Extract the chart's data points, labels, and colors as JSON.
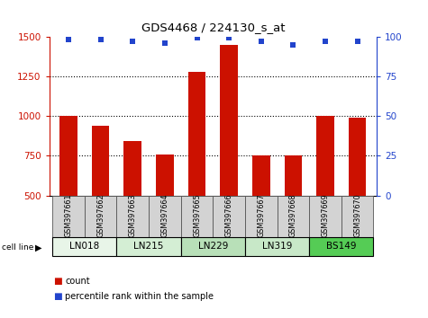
{
  "title": "GDS4468 / 224130_s_at",
  "samples": [
    "GSM397661",
    "GSM397662",
    "GSM397663",
    "GSM397664",
    "GSM397665",
    "GSM397666",
    "GSM397667",
    "GSM397668",
    "GSM397669",
    "GSM397670"
  ],
  "counts": [
    1000,
    940,
    845,
    760,
    1280,
    1450,
    755,
    750,
    1000,
    990
  ],
  "percentiles": [
    98,
    98,
    97,
    96,
    99,
    99,
    97,
    95,
    97,
    97
  ],
  "cell_lines": [
    {
      "name": "LN018",
      "samples": [
        0,
        1
      ],
      "color": "#e8f5e8"
    },
    {
      "name": "LN215",
      "samples": [
        2,
        3
      ],
      "color": "#d4eed4"
    },
    {
      "name": "LN229",
      "samples": [
        4,
        5
      ],
      "color": "#b8e0b8"
    },
    {
      "name": "LN319",
      "samples": [
        6,
        7
      ],
      "color": "#c8e8c8"
    },
    {
      "name": "BS149",
      "samples": [
        8,
        9
      ],
      "color": "#55cc55"
    }
  ],
  "ylim_left": [
    500,
    1500
  ],
  "ylim_right": [
    0,
    100
  ],
  "yticks_left": [
    500,
    750,
    1000,
    1250,
    1500
  ],
  "yticks_right": [
    0,
    25,
    50,
    75,
    100
  ],
  "bar_color": "#cc1100",
  "dot_color": "#2244cc",
  "bar_width": 0.55,
  "legend_count_color": "#cc1100",
  "legend_dot_color": "#2244cc"
}
